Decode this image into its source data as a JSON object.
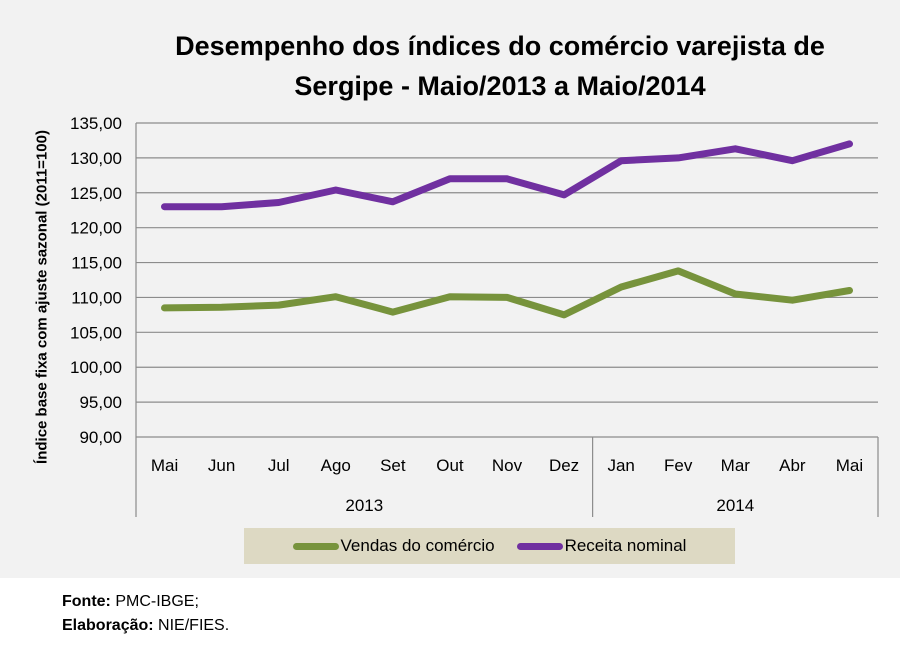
{
  "chart_data": {
    "type": "line",
    "title": "Desempenho dos índices do comércio varejista de Sergipe - Maio/2013 a Maio/2014",
    "title_lines": [
      "Desempenho dos índices do comércio varejista de",
      "Sergipe - Maio/2013 a Maio/2014"
    ],
    "xlabel": "",
    "ylabel": "Índice base fixa com ajuste sazonal (2011=100)",
    "categories": [
      "Mai",
      "Jun",
      "Jul",
      "Ago",
      "Set",
      "Out",
      "Nov",
      "Dez",
      "Jan",
      "Fev",
      "Mar",
      "Abr",
      "Mai"
    ],
    "category_groups": [
      {
        "label": "2013",
        "count": 8
      },
      {
        "label": "2014",
        "count": 5
      }
    ],
    "ylim": [
      90,
      135
    ],
    "yticks": [
      90,
      95,
      100,
      105,
      110,
      115,
      120,
      125,
      130,
      135
    ],
    "ytick_labels": [
      "90,00",
      "95,00",
      "100,00",
      "105,00",
      "110,00",
      "115,00",
      "120,00",
      "125,00",
      "130,00",
      "135,00"
    ],
    "grid": true,
    "legend_position": "bottom",
    "series": [
      {
        "name": "Vendas do comércio",
        "color": "#77933c",
        "values": [
          108.5,
          108.6,
          108.9,
          110.1,
          107.9,
          110.1,
          110.0,
          107.5,
          111.5,
          113.8,
          110.5,
          109.6,
          111.0
        ]
      },
      {
        "name": "Receita nominal",
        "color": "#7030a0",
        "values": [
          123.0,
          123.0,
          123.6,
          125.4,
          123.7,
          127.0,
          127.0,
          124.7,
          129.6,
          130.0,
          131.3,
          129.6,
          132.0
        ]
      }
    ]
  },
  "footer": {
    "source_label": "Fonte:",
    "source_value": "PMC-IBGE;",
    "author_label": "Elaboração:",
    "author_value": "NIE/FIES."
  }
}
